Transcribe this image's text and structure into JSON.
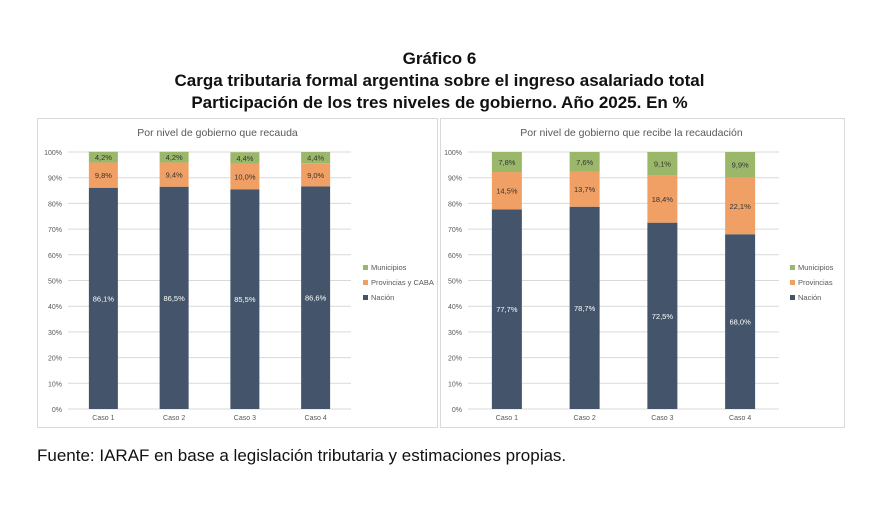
{
  "figure": {
    "number": "Gráfico 6",
    "title": "Carga tributaria formal argentina sobre el ingreso asalariado total",
    "subtitle": "Participación de los tres niveles de gobierno. Año 2025. En %"
  },
  "source": "Fuente: IARAF en base a legislación tributaria y estimaciones propias.",
  "chart_data": [
    {
      "type": "bar",
      "stacked": true,
      "title": "Por nivel de gobierno que recauda",
      "categories": [
        "Caso 1",
        "Caso 2",
        "Caso 3",
        "Caso 4"
      ],
      "y_ticks": [
        "0%",
        "10%",
        "20%",
        "30%",
        "40%",
        "50%",
        "60%",
        "70%",
        "80%",
        "90%",
        "100%"
      ],
      "ylim": [
        0,
        100
      ],
      "legend_position": "right",
      "series": [
        {
          "name": "Nación",
          "color": "#44546a",
          "label_color": "#ffffff",
          "values": [
            86.1,
            86.5,
            85.5,
            86.6
          ],
          "labels": [
            "86,1%",
            "86,5%",
            "85,5%",
            "86,6%"
          ]
        },
        {
          "name": "Provincias y CABA",
          "color": "#f0a064",
          "label_color": "#333333",
          "values": [
            9.8,
            9.4,
            10.0,
            9.0
          ],
          "labels": [
            "9,8%",
            "9,4%",
            "10,0%",
            "9,0%"
          ]
        },
        {
          "name": "Municipios",
          "color": "#9bb86a",
          "label_color": "#333333",
          "values": [
            4.2,
            4.2,
            4.4,
            4.4
          ],
          "labels": [
            "4,2%",
            "4,2%",
            "4,4%",
            "4,4%"
          ]
        }
      ]
    },
    {
      "type": "bar",
      "stacked": true,
      "title": "Por nivel de gobierno que recibe la recaudación",
      "categories": [
        "Caso 1",
        "Caso 2",
        "Caso 3",
        "Caso 4"
      ],
      "y_ticks": [
        "0%",
        "10%",
        "20%",
        "30%",
        "40%",
        "50%",
        "60%",
        "70%",
        "80%",
        "90%",
        "100%"
      ],
      "ylim": [
        0,
        100
      ],
      "legend_position": "right",
      "series": [
        {
          "name": "Nación",
          "color": "#44546a",
          "label_color": "#ffffff",
          "values": [
            77.7,
            78.7,
            72.5,
            68.0
          ],
          "labels": [
            "77,7%",
            "78,7%",
            "72,5%",
            "68,0%"
          ]
        },
        {
          "name": "Provincias",
          "color": "#f0a064",
          "label_color": "#333333",
          "values": [
            14.5,
            13.7,
            18.4,
            22.1
          ],
          "labels": [
            "14,5%",
            "13,7%",
            "18,4%",
            "22,1%"
          ]
        },
        {
          "name": "Municipios",
          "color": "#9bb86a",
          "label_color": "#333333",
          "values": [
            7.8,
            7.6,
            9.1,
            9.9
          ],
          "labels": [
            "7,8%",
            "7,6%",
            "9,1%",
            "9,9%"
          ]
        }
      ]
    }
  ]
}
